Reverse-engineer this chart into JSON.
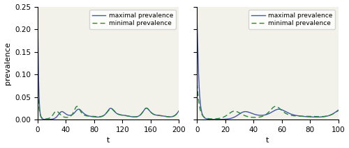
{
  "xlim1": [
    0,
    200
  ],
  "xlim2": [
    0,
    100
  ],
  "ylim": [
    0,
    0.25
  ],
  "yticks": [
    0,
    0.05,
    0.1,
    0.15,
    0.2,
    0.25
  ],
  "xticks1": [
    0,
    40,
    80,
    120,
    160,
    200
  ],
  "xticks2": [
    0,
    20,
    40,
    60,
    80,
    100
  ],
  "xlabel": "t",
  "ylabel": "prevalence",
  "max_color": "#4455aa",
  "min_color": "#228833",
  "bg_color": "#f2f2ea",
  "legend_max": "maximal prevalence",
  "legend_min": "minimal prevalence",
  "figsize": [
    5.0,
    2.13
  ],
  "dpi": 100
}
